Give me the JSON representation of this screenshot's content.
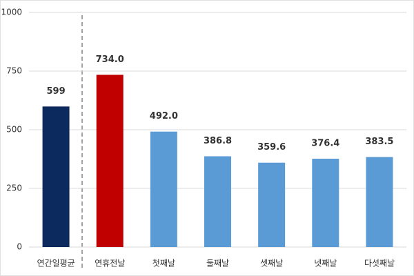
{
  "chart_data": {
    "type": "bar",
    "categories": [
      "연간일평균",
      "연휴전날",
      "첫째날",
      "둘째날",
      "셋째날",
      "넷째날",
      "다섯째날"
    ],
    "values": [
      599,
      734.0,
      492.0,
      386.8,
      359.6,
      376.4,
      383.5
    ],
    "value_labels": [
      "599",
      "734.0",
      "492.0",
      "386.8",
      "359.6",
      "376.4",
      "383.5"
    ],
    "colors": [
      "#0d2a5e",
      "#c00000",
      "#5b9bd5",
      "#5b9bd5",
      "#5b9bd5",
      "#5b9bd5",
      "#5b9bd5"
    ],
    "ylim": [
      0,
      1000
    ],
    "yticks": [
      0,
      250,
      500,
      750,
      1000
    ],
    "grid": true
  }
}
